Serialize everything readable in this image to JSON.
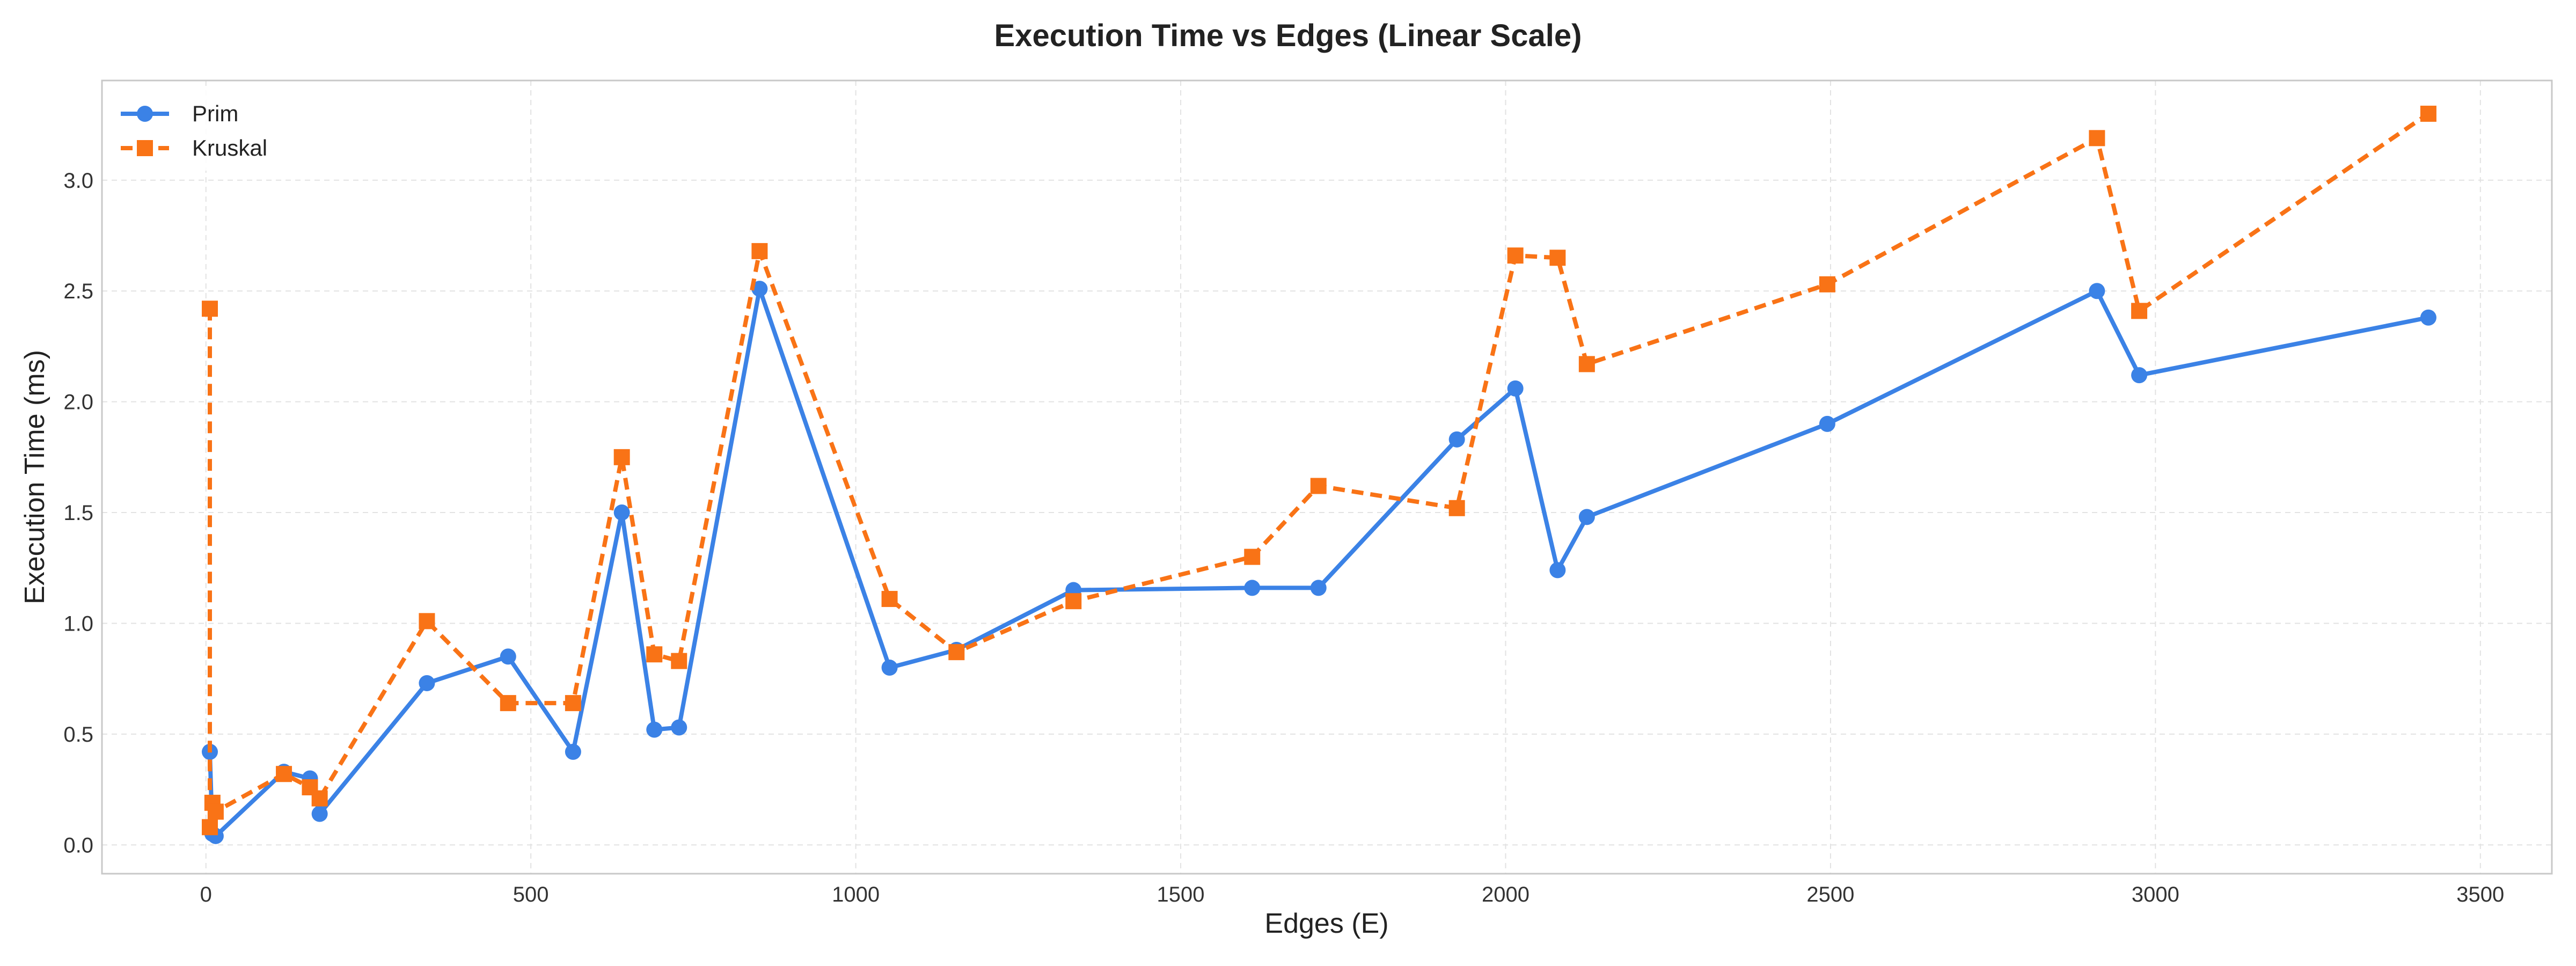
{
  "chart_data": {
    "type": "line",
    "title": "Execution Time vs Edges (Linear Scale)",
    "xlabel": "Edges (E)",
    "ylabel": "Execution Time (ms)",
    "xlim": [
      -160,
      3610
    ],
    "ylim": [
      -0.13,
      3.45
    ],
    "xticks": [
      0,
      500,
      1000,
      1500,
      2000,
      2500,
      3000,
      3500
    ],
    "yticks": [
      0.0,
      0.5,
      1.0,
      1.5,
      2.0,
      2.5,
      3.0
    ],
    "xtick_labels": [
      "0",
      "500",
      "1000",
      "1500",
      "2000",
      "2500",
      "3000",
      "3500"
    ],
    "ytick_labels": [
      "0.0",
      "0.5",
      "1.0",
      "1.5",
      "2.0",
      "2.5",
      "3.0"
    ],
    "grid": true,
    "legend_position": "top-left",
    "series": [
      {
        "name": "Prim",
        "color": "#3b82e6",
        "marker": "circle",
        "line_style": "solid",
        "x": [
          6,
          10,
          15,
          120,
          160,
          175,
          340,
          465,
          565,
          640,
          690,
          728,
          852,
          1052,
          1155,
          1335,
          1610,
          1712,
          1925,
          2015,
          2080,
          2125,
          2495,
          2910,
          2975,
          3420
        ],
        "y": [
          0.42,
          0.05,
          0.04,
          0.33,
          0.3,
          0.14,
          0.73,
          0.85,
          0.42,
          1.5,
          0.52,
          0.53,
          2.51,
          0.8,
          0.88,
          1.15,
          1.16,
          1.16,
          1.83,
          2.06,
          1.24,
          1.48,
          1.9,
          2.5,
          2.12,
          2.38
        ]
      },
      {
        "name": "Kruskal",
        "color": "#f97316",
        "marker": "square",
        "line_style": "dashed",
        "x": [
          6,
          6,
          10,
          15,
          120,
          160,
          175,
          340,
          465,
          565,
          640,
          690,
          728,
          852,
          1052,
          1155,
          1335,
          1610,
          1712,
          1925,
          2015,
          2080,
          2125,
          2495,
          2910,
          2975,
          3420
        ],
        "y": [
          2.42,
          0.08,
          0.19,
          0.15,
          0.32,
          0.26,
          0.21,
          1.01,
          0.64,
          0.64,
          1.75,
          0.86,
          0.83,
          2.68,
          1.11,
          0.87,
          1.1,
          1.3,
          1.62,
          1.52,
          2.66,
          2.65,
          2.17,
          2.53,
          3.19,
          2.41,
          3.3
        ]
      }
    ]
  }
}
